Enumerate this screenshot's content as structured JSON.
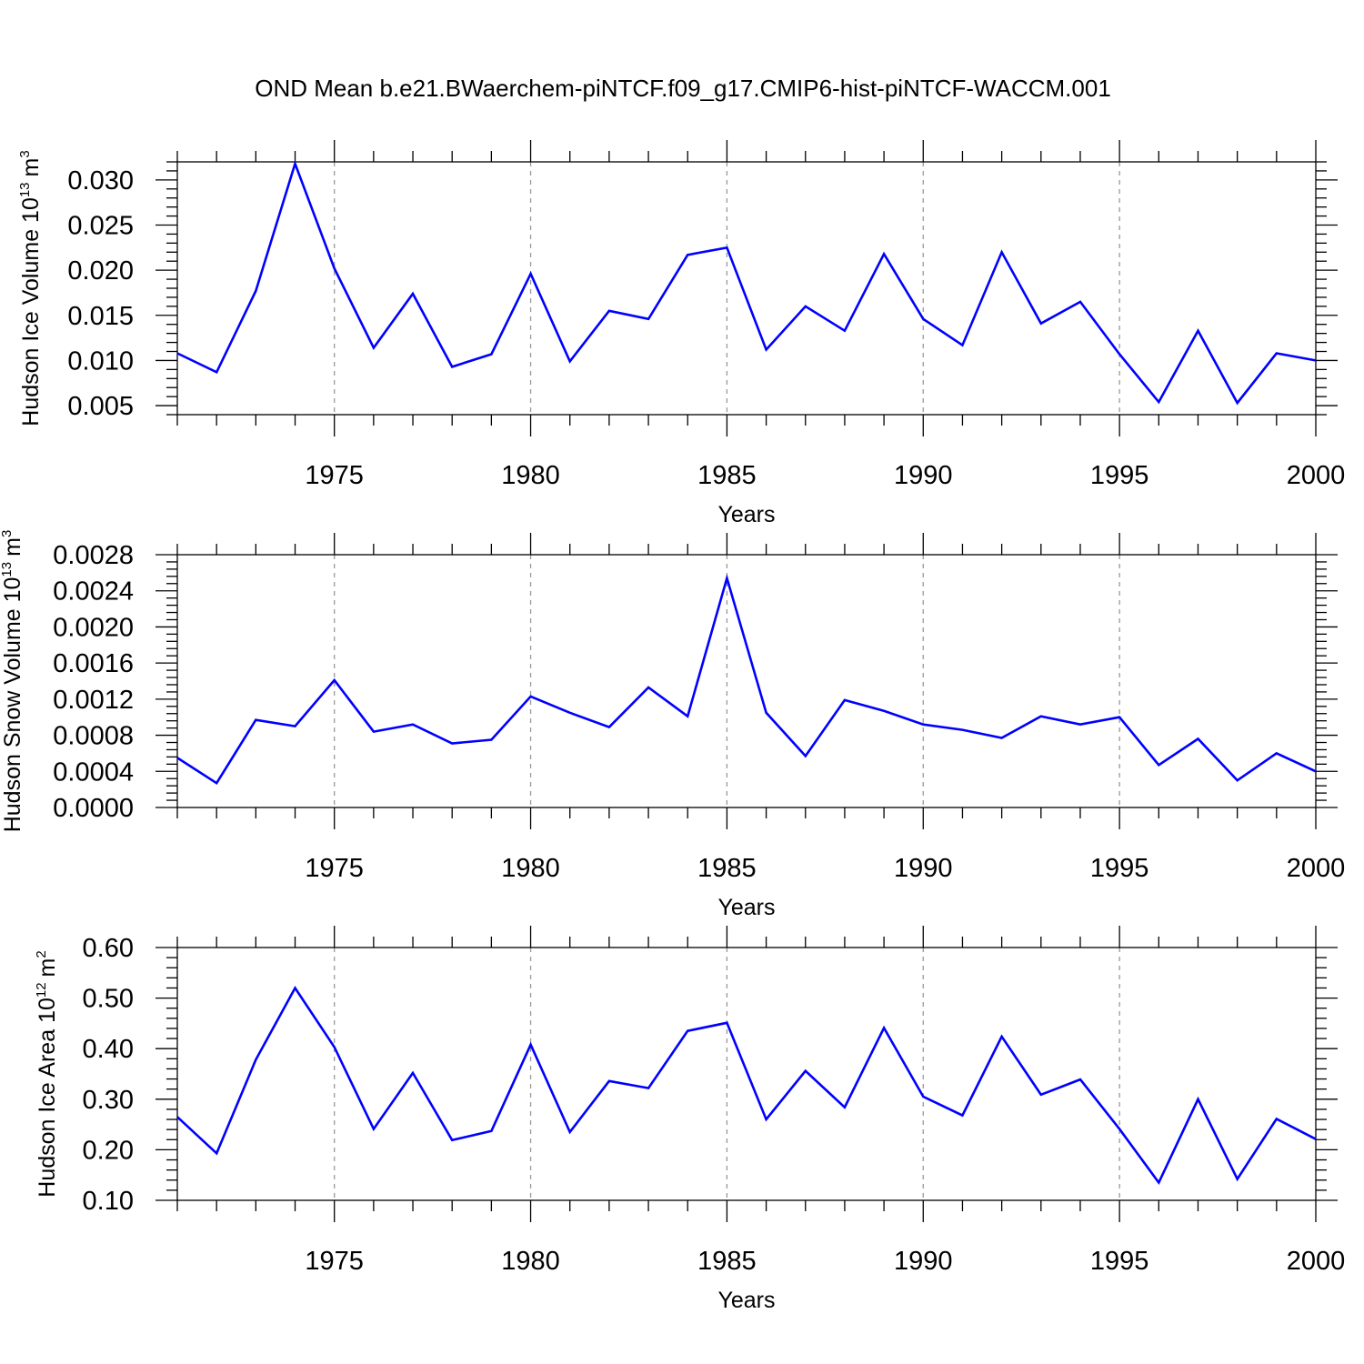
{
  "chart_data": [
    {
      "type": "line",
      "title": "OND Mean b.e21.BWaerchem-piNTCF.f09_g17.CMIP6-hist-piNTCF-WACCM.001",
      "xlabel": "Years",
      "ylabel": "Hudson Ice Volume 10",
      "ylabel_exp": "13",
      "ylabel_unit": "m",
      "ylabel_unit_exp": "3",
      "xlim": [
        1971,
        2000
      ],
      "ylim": [
        0.004,
        0.032
      ],
      "xticks": [
        1975,
        1980,
        1985,
        1990,
        1995,
        2000
      ],
      "xtick_labels": [
        "1975",
        "1980",
        "1985",
        "1990",
        "1995",
        "2000"
      ],
      "yticks": [
        0.005,
        0.01,
        0.015,
        0.02,
        0.025,
        0.03
      ],
      "ytick_labels": [
        "0.005",
        "0.010",
        "0.015",
        "0.020",
        "0.025",
        "0.030"
      ],
      "grid": "vertical dashed at major x ticks",
      "line_color": "#0000ff",
      "x": [
        1971,
        1972,
        1973,
        1974,
        1975,
        1976,
        1977,
        1978,
        1979,
        1980,
        1981,
        1982,
        1983,
        1984,
        1985,
        1986,
        1987,
        1988,
        1989,
        1990,
        1991,
        1992,
        1993,
        1994,
        1995,
        1996,
        1997,
        1998,
        1999,
        2000
      ],
      "values": [
        0.0108,
        0.0087,
        0.0177,
        0.0318,
        0.0202,
        0.0114,
        0.0174,
        0.0093,
        0.0107,
        0.0196,
        0.0099,
        0.0155,
        0.0146,
        0.0217,
        0.0225,
        0.0112,
        0.016,
        0.0133,
        0.0218,
        0.0146,
        0.0117,
        0.022,
        0.0141,
        0.0165,
        0.0107,
        0.0054,
        0.0133,
        0.0053,
        0.0108,
        0.01
      ]
    },
    {
      "type": "line",
      "xlabel": "Years",
      "ylabel": "Hudson Snow Volume 10",
      "ylabel_exp": "13",
      "ylabel_unit": "m",
      "ylabel_unit_exp": "3",
      "xlim": [
        1971,
        2000
      ],
      "ylim": [
        0.0,
        0.0028
      ],
      "xticks": [
        1975,
        1980,
        1985,
        1990,
        1995,
        2000
      ],
      "xtick_labels": [
        "1975",
        "1980",
        "1985",
        "1990",
        "1995",
        "2000"
      ],
      "yticks": [
        0.0,
        0.0004,
        0.0008,
        0.0012,
        0.0016,
        0.002,
        0.0024,
        0.0028
      ],
      "ytick_labels": [
        "0.0000",
        "0.0004",
        "0.0008",
        "0.0012",
        "0.0016",
        "0.0020",
        "0.0024",
        "0.0028"
      ],
      "grid": "vertical dashed at major x ticks",
      "line_color": "#0000ff",
      "x": [
        1971,
        1972,
        1973,
        1974,
        1975,
        1976,
        1977,
        1978,
        1979,
        1980,
        1981,
        1982,
        1983,
        1984,
        1985,
        1986,
        1987,
        1988,
        1989,
        1990,
        1991,
        1992,
        1993,
        1994,
        1995,
        1996,
        1997,
        1998,
        1999,
        2000
      ],
      "values": [
        0.00055,
        0.00027,
        0.00097,
        0.0009,
        0.00141,
        0.00084,
        0.00092,
        0.00071,
        0.00075,
        0.00123,
        0.00105,
        0.00089,
        0.00133,
        0.00101,
        0.00254,
        0.00105,
        0.00057,
        0.00119,
        0.00107,
        0.00092,
        0.00086,
        0.00077,
        0.00101,
        0.00092,
        0.001,
        0.00047,
        0.00076,
        0.0003,
        0.0006,
        0.0004
      ]
    },
    {
      "type": "line",
      "xlabel": "Years",
      "ylabel": "Hudson Ice Area 10",
      "ylabel_exp": "12",
      "ylabel_unit": "m",
      "ylabel_unit_exp": "2",
      "xlim": [
        1971,
        2000
      ],
      "ylim": [
        0.1,
        0.6
      ],
      "xticks": [
        1975,
        1980,
        1985,
        1990,
        1995,
        2000
      ],
      "xtick_labels": [
        "1975",
        "1980",
        "1985",
        "1990",
        "1995",
        "2000"
      ],
      "yticks": [
        0.1,
        0.2,
        0.3,
        0.4,
        0.5,
        0.6
      ],
      "ytick_labels": [
        "0.10",
        "0.20",
        "0.30",
        "0.40",
        "0.50",
        "0.60"
      ],
      "grid": "vertical dashed at major x ticks",
      "line_color": "#0000ff",
      "x": [
        1971,
        1972,
        1973,
        1974,
        1975,
        1976,
        1977,
        1978,
        1979,
        1980,
        1981,
        1982,
        1983,
        1984,
        1985,
        1986,
        1987,
        1988,
        1989,
        1990,
        1991,
        1992,
        1993,
        1994,
        1995,
        1996,
        1997,
        1998,
        1999,
        2000
      ],
      "values": [
        0.265,
        0.193,
        0.378,
        0.52,
        0.403,
        0.241,
        0.352,
        0.219,
        0.237,
        0.408,
        0.235,
        0.336,
        0.322,
        0.435,
        0.451,
        0.26,
        0.356,
        0.284,
        0.441,
        0.305,
        0.268,
        0.424,
        0.309,
        0.339,
        0.241,
        0.135,
        0.3,
        0.142,
        0.261,
        0.221
      ]
    }
  ]
}
